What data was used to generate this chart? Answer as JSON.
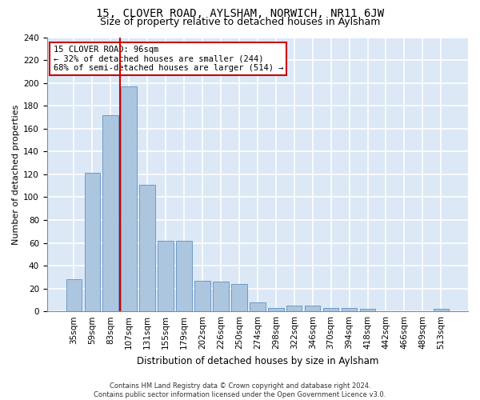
{
  "title1": "15, CLOVER ROAD, AYLSHAM, NORWICH, NR11 6JW",
  "title2": "Size of property relative to detached houses in Aylsham",
  "xlabel": "Distribution of detached houses by size in Aylsham",
  "ylabel": "Number of detached properties",
  "bar_color": "#adc6e0",
  "bar_edge_color": "#6090c0",
  "background_color": "#dce8f5",
  "grid_color": "#ffffff",
  "vline_color": "#cc0000",
  "annotation_text": "15 CLOVER ROAD: 96sqm\n← 32% of detached houses are smaller (244)\n68% of semi-detached houses are larger (514) →",
  "annotation_box_color": "#ffffff",
  "annotation_box_edge": "#cc0000",
  "categories": [
    "35sqm",
    "59sqm",
    "83sqm",
    "107sqm",
    "131sqm",
    "155sqm",
    "179sqm",
    "202sqm",
    "226sqm",
    "250sqm",
    "274sqm",
    "298sqm",
    "322sqm",
    "346sqm",
    "370sqm",
    "394sqm",
    "418sqm",
    "442sqm",
    "466sqm",
    "489sqm",
    "513sqm"
  ],
  "values": [
    28,
    121,
    172,
    197,
    111,
    62,
    62,
    27,
    26,
    24,
    8,
    3,
    5,
    5,
    3,
    3,
    2,
    0,
    0,
    0,
    2
  ],
  "ylim": [
    0,
    240
  ],
  "yticks": [
    0,
    20,
    40,
    60,
    80,
    100,
    120,
    140,
    160,
    180,
    200,
    220,
    240
  ],
  "footer": "Contains HM Land Registry data © Crown copyright and database right 2024.\nContains public sector information licensed under the Open Government Licence v3.0.",
  "title1_fontsize": 10,
  "title2_fontsize": 9,
  "ylabel_fontsize": 8,
  "xlabel_fontsize": 8.5,
  "tick_fontsize": 7.5,
  "footer_fontsize": 6,
  "annotation_fontsize": 7.5
}
